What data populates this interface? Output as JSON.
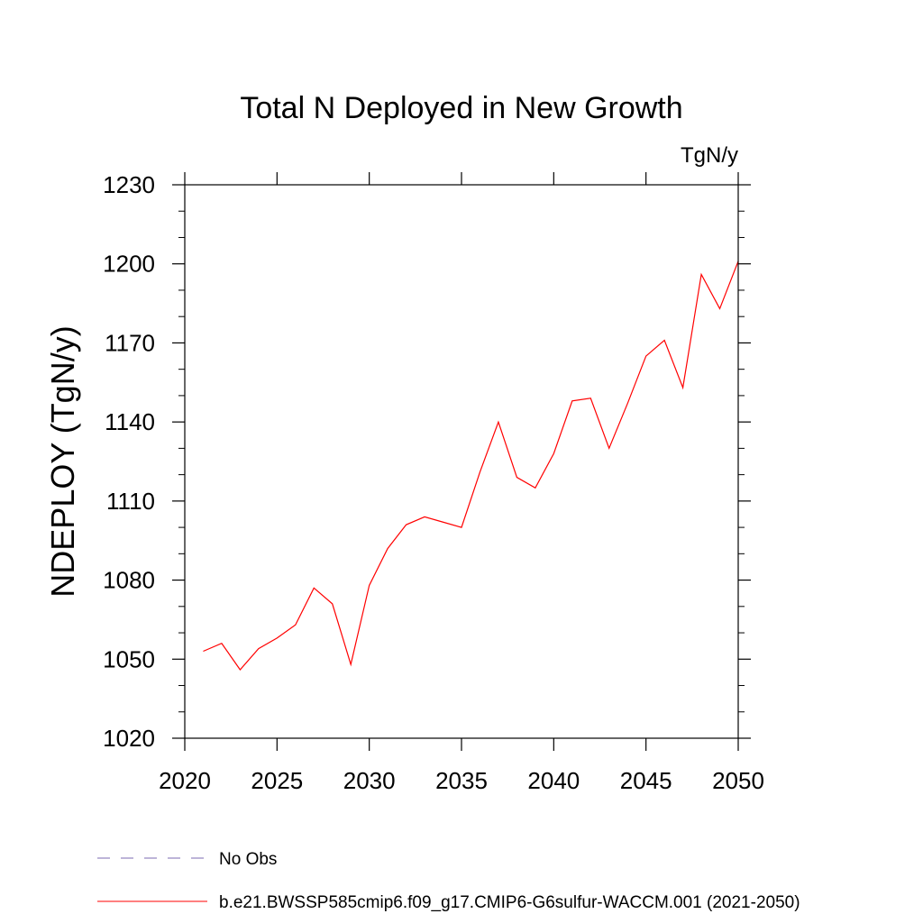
{
  "chart_data": {
    "type": "line",
    "title": "Total N Deployed in New Growth",
    "units": "TgN/y",
    "ylabel": "NDEPLOY  (TgN/y)",
    "xlabel": "",
    "xlim": [
      2020,
      2050
    ],
    "ylim": [
      1020,
      1230
    ],
    "xticks": [
      2020,
      2025,
      2030,
      2035,
      2040,
      2045,
      2050
    ],
    "yticks": [
      1020,
      1050,
      1080,
      1110,
      1140,
      1170,
      1200,
      1230
    ],
    "grid": false,
    "legend_position": "bottom",
    "series": [
      {
        "name": "No Obs",
        "color": "#7b68b0",
        "dash": "dashed",
        "x": [],
        "y": []
      },
      {
        "name": "b.e21.BWSSP585cmip6.f09_g17.CMIP6-G6sulfur-WACCM.001 (2021-2050)",
        "color": "#ff0000",
        "dash": "solid",
        "x": [
          2021,
          2022,
          2023,
          2024,
          2025,
          2026,
          2027,
          2028,
          2029,
          2030,
          2031,
          2032,
          2033,
          2034,
          2035,
          2036,
          2037,
          2038,
          2039,
          2040,
          2041,
          2042,
          2043,
          2044,
          2045,
          2046,
          2047,
          2048,
          2049,
          2050
        ],
        "y": [
          1053,
          1056,
          1046,
          1054,
          1058,
          1063,
          1077,
          1071,
          1048,
          1078,
          1092,
          1101,
          1104,
          1102,
          1100,
          1121,
          1140,
          1119,
          1115,
          1128,
          1148,
          1149,
          1130,
          1147,
          1165,
          1171,
          1153,
          1196,
          1183,
          1201
        ]
      }
    ]
  }
}
